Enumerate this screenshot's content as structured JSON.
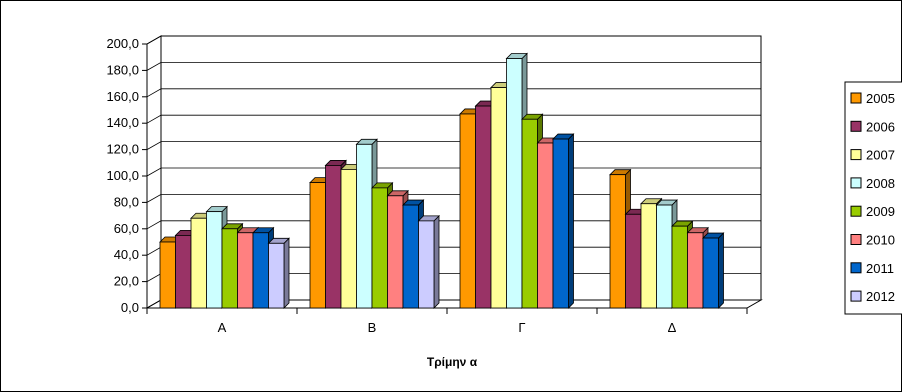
{
  "chart_data": {
    "type": "bar",
    "title": "",
    "xlabel": "Τρίμην α",
    "ylabel": "",
    "categories": [
      "Α",
      "Β",
      "Γ",
      "Δ"
    ],
    "ylim": [
      0,
      200
    ],
    "yticks": [
      "0,0",
      "20,0",
      "40,0",
      "60,0",
      "80,0",
      "100,0",
      "120,0",
      "140,0",
      "160,0",
      "180,0",
      "200,0"
    ],
    "grid": true,
    "legend_position": "right",
    "series": [
      {
        "name": "2005",
        "color": "#FF9900",
        "values": [
          50,
          95,
          147,
          101
        ]
      },
      {
        "name": "2006",
        "color": "#993366",
        "values": [
          55,
          108,
          153,
          71
        ]
      },
      {
        "name": "2007",
        "color": "#FFFF99",
        "values": [
          68,
          105,
          167,
          79
        ]
      },
      {
        "name": "2008",
        "color": "#CCFFFF",
        "values": [
          73,
          124,
          189,
          78
        ]
      },
      {
        "name": "2009",
        "color": "#99CC00",
        "values": [
          60,
          91,
          143,
          62
        ]
      },
      {
        "name": "2010",
        "color": "#FF8080",
        "values": [
          57,
          85,
          125,
          57
        ]
      },
      {
        "name": "2011",
        "color": "#0066CC",
        "values": [
          57,
          78,
          128,
          53
        ]
      },
      {
        "name": "2012",
        "color": "#CCCCFF",
        "values": [
          49,
          66,
          null,
          null
        ]
      }
    ]
  }
}
